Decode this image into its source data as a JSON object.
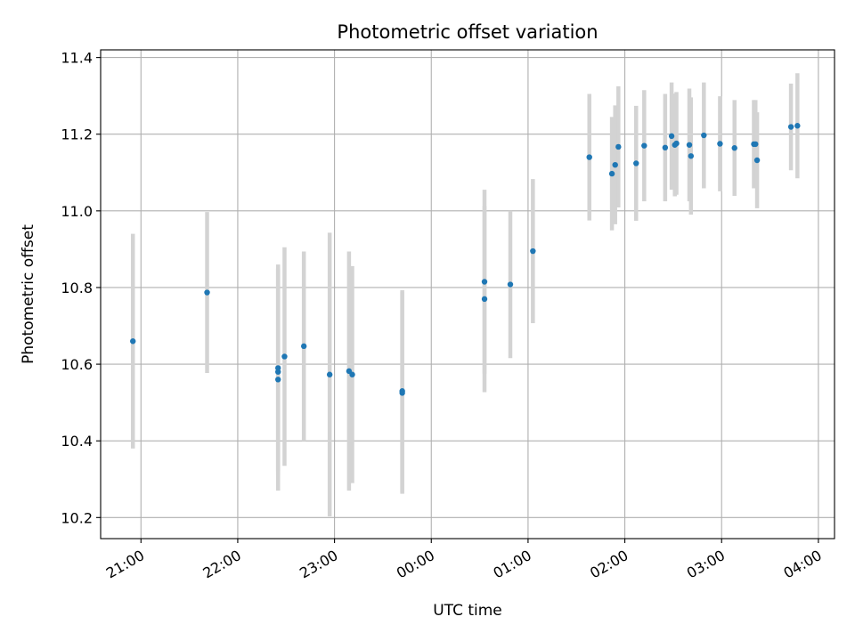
{
  "chart_data": {
    "type": "scatter",
    "title": "Photometric offset variation",
    "xlabel": "UTC time",
    "ylabel": "Photometric offset",
    "xlim": [
      "20:35",
      "04:10"
    ],
    "ylim": [
      10.145,
      11.42
    ],
    "grid": true,
    "x_ticks": [
      "21:00",
      "22:00",
      "23:00",
      "00:00",
      "01:00",
      "02:00",
      "03:00",
      "04:00"
    ],
    "y_ticks": [
      10.2,
      10.4,
      10.6,
      10.8,
      11.0,
      11.2,
      11.4
    ],
    "y_tick_labels": [
      "10.2",
      "10.4",
      "10.6",
      "10.8",
      "11.0",
      "11.2",
      "11.4"
    ],
    "colors": {
      "point": "#1f77b4",
      "errorbar": "#d3d3d3",
      "grid": "#b0b0b0"
    },
    "points": [
      {
        "t": "20:55",
        "y": 10.66,
        "err": 0.28
      },
      {
        "t": "21:41",
        "y": 10.787,
        "err": 0.21
      },
      {
        "t": "22:25",
        "y": 10.58,
        "err": 0.27
      },
      {
        "t": "22:25",
        "y": 10.59,
        "err": 0.27
      },
      {
        "t": "22:25",
        "y": 10.56,
        "err": 0.29
      },
      {
        "t": "22:29",
        "y": 10.62,
        "err": 0.285
      },
      {
        "t": "22:41",
        "y": 10.647,
        "err": 0.247
      },
      {
        "t": "22:57",
        "y": 10.573,
        "err": 0.37
      },
      {
        "t": "23:09",
        "y": 10.582,
        "err": 0.312
      },
      {
        "t": "23:11",
        "y": 10.573,
        "err": 0.283
      },
      {
        "t": "23:42",
        "y": 10.53,
        "err": 0.263
      },
      {
        "t": "23:42",
        "y": 10.525,
        "err": 0.263
      },
      {
        "t": "00:33",
        "y": 10.77,
        "err": 0.243
      },
      {
        "t": "00:33",
        "y": 10.815,
        "err": 0.24
      },
      {
        "t": "00:49",
        "y": 10.808,
        "err": 0.192
      },
      {
        "t": "01:03",
        "y": 10.895,
        "err": 0.188
      },
      {
        "t": "01:38",
        "y": 11.14,
        "err": 0.165
      },
      {
        "t": "01:52",
        "y": 11.097,
        "err": 0.148
      },
      {
        "t": "01:54",
        "y": 11.12,
        "err": 0.155
      },
      {
        "t": "01:56",
        "y": 11.167,
        "err": 0.158
      },
      {
        "t": "02:07",
        "y": 11.124,
        "err": 0.15
      },
      {
        "t": "02:12",
        "y": 11.17,
        "err": 0.145
      },
      {
        "t": "02:25",
        "y": 11.165,
        "err": 0.14
      },
      {
        "t": "02:29",
        "y": 11.195,
        "err": 0.14
      },
      {
        "t": "02:31",
        "y": 11.172,
        "err": 0.134
      },
      {
        "t": "02:32",
        "y": 11.176,
        "err": 0.134
      },
      {
        "t": "02:40",
        "y": 11.172,
        "err": 0.147
      },
      {
        "t": "02:41",
        "y": 11.143,
        "err": 0.153
      },
      {
        "t": "02:49",
        "y": 11.197,
        "err": 0.138
      },
      {
        "t": "02:59",
        "y": 11.175,
        "err": 0.124
      },
      {
        "t": "03:08",
        "y": 11.164,
        "err": 0.125
      },
      {
        "t": "03:20",
        "y": 11.174,
        "err": 0.115
      },
      {
        "t": "03:21",
        "y": 11.174,
        "err": 0.115
      },
      {
        "t": "03:22",
        "y": 11.132,
        "err": 0.125
      },
      {
        "t": "03:43",
        "y": 11.219,
        "err": 0.113
      },
      {
        "t": "03:47",
        "y": 11.222,
        "err": 0.137
      }
    ]
  }
}
